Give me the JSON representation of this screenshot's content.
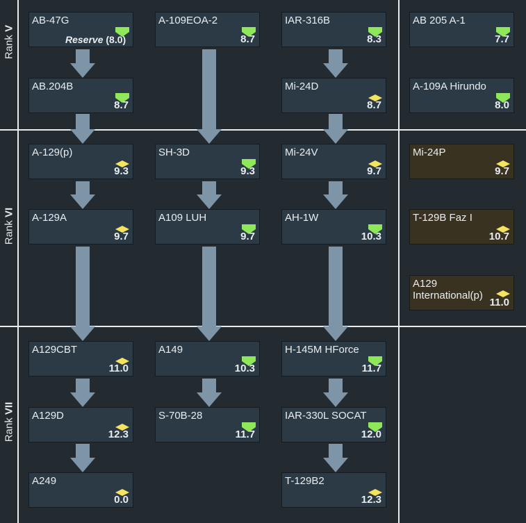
{
  "ranks": [
    {
      "prefix": "Rank",
      "numeral": "V"
    },
    {
      "prefix": "Rank",
      "numeral": "VI"
    },
    {
      "prefix": "Rank",
      "numeral": "VII"
    }
  ],
  "colors": {
    "card_standard": "#2c3a46",
    "card_premium": "#3a3221",
    "arrow": "#7d95a6",
    "helicopter_icon": "#8fe85a",
    "rotor_icon": "#f3e35e"
  },
  "vehicles": {
    "ab47g": {
      "name": "AB-47G",
      "reserve_label": "Reserve",
      "br": "(8.0)",
      "icon": "helicopter-icon"
    },
    "a109eoa2": {
      "name": "A-109EOA-2",
      "br": "8.7",
      "icon": "helicopter-icon"
    },
    "iar316b": {
      "name": "IAR-316B",
      "br": "8.3",
      "icon": "helicopter-icon"
    },
    "ab205a1": {
      "name": "AB 205 A-1",
      "br": "7.7",
      "icon": "helicopter-icon"
    },
    "ab204b": {
      "name": "AB.204B",
      "br": "8.7",
      "icon": "helicopter-icon"
    },
    "mi24d": {
      "name": "Mi-24D",
      "br": "8.7",
      "icon": "rotor-icon"
    },
    "a109a": {
      "name": "A-109A Hirundo",
      "br": "8.0",
      "icon": "helicopter-icon"
    },
    "a129p": {
      "name": "A-129(p)",
      "br": "9.3",
      "icon": "rotor-icon"
    },
    "sh3d": {
      "name": "SH-3D",
      "br": "9.3",
      "icon": "helicopter-icon"
    },
    "mi24v": {
      "name": "Mi-24V",
      "br": "9.7",
      "icon": "rotor-icon"
    },
    "mi24p": {
      "name": "Mi-24P",
      "br": "9.7",
      "icon": "rotor-icon"
    },
    "a129a": {
      "name": "A-129A",
      "br": "9.7",
      "icon": "rotor-icon"
    },
    "a109luh": {
      "name": "A109 LUH",
      "br": "9.7",
      "icon": "helicopter-icon"
    },
    "ah1w": {
      "name": "AH-1W",
      "br": "10.3",
      "icon": "helicopter-icon"
    },
    "t129bfaz": {
      "name": "T-129B Faz I",
      "br": "10.7",
      "icon": "rotor-icon"
    },
    "a129intl": {
      "name": "A129 International(p)",
      "br": "11.0",
      "icon": "rotor-icon"
    },
    "a129cbt": {
      "name": "A129CBT",
      "br": "11.0",
      "icon": "rotor-icon"
    },
    "a149": {
      "name": "A149",
      "br": "10.3",
      "icon": "helicopter-icon"
    },
    "h145m": {
      "name": "H-145M HForce",
      "br": "11.7",
      "icon": "helicopter-icon"
    },
    "a129d": {
      "name": "A129D",
      "br": "12.3",
      "icon": "rotor-icon"
    },
    "s70b28": {
      "name": "S-70B-28",
      "br": "11.7",
      "icon": "helicopter-icon"
    },
    "iar330l": {
      "name": "IAR-330L SOCAT",
      "br": "12.0",
      "icon": "helicopter-icon"
    },
    "a249": {
      "name": "A249",
      "br": "0.0",
      "icon": "rotor-icon"
    },
    "t129b2": {
      "name": "T-129B2",
      "br": "12.3",
      "icon": "rotor-icon"
    }
  }
}
